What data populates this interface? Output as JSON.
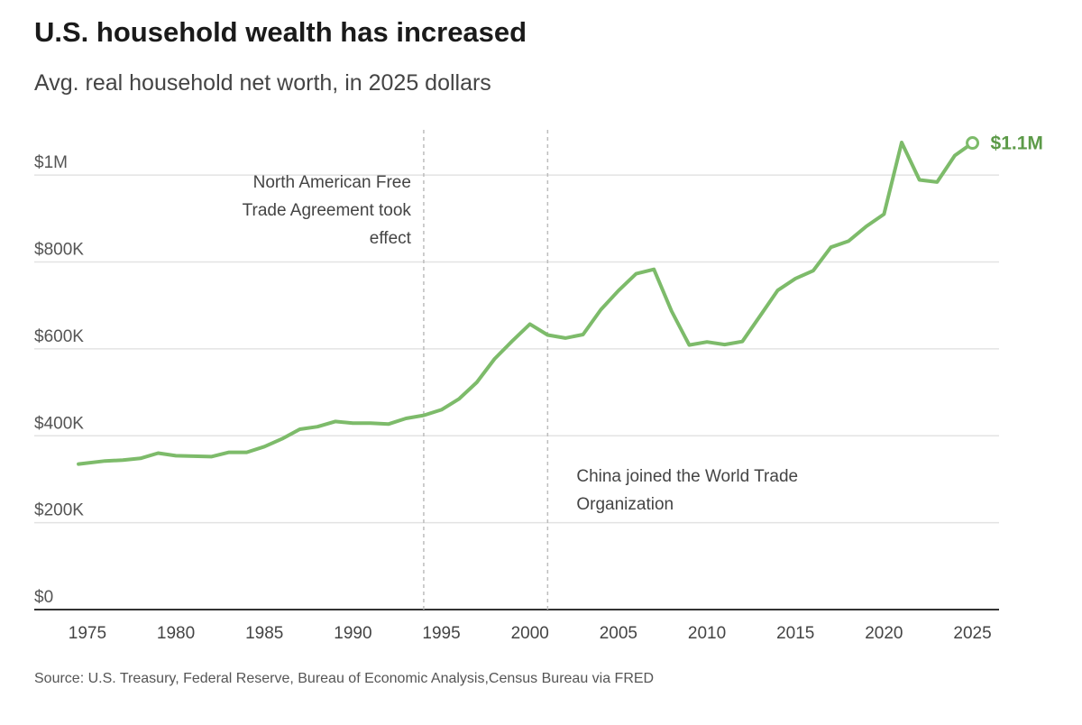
{
  "header": {
    "title": "U.S. household wealth has increased",
    "subtitle": "Avg. real household net worth, in 2025 dollars"
  },
  "footer": {
    "source": "Source: U.S. Treasury, Federal Reserve, Bureau of Economic Analysis,Census Bureau via FRED"
  },
  "colors": {
    "line": "#7dbb6a",
    "end_label": "#5c9a48",
    "grid": "#e3e3e3",
    "axis": "#333333",
    "marker_line": "#bdbdbd"
  },
  "chart_data": {
    "type": "line",
    "title": "U.S. household wealth has increased",
    "subtitle": "Avg. real household net worth, in 2025 dollars",
    "xlim": [
      1972,
      2026.5
    ],
    "ylim": [
      0,
      1100000
    ],
    "grid": true,
    "y_ticks": [
      {
        "value": 0,
        "label": "$0"
      },
      {
        "value": 200000,
        "label": "$200K"
      },
      {
        "value": 400000,
        "label": "$400K"
      },
      {
        "value": 600000,
        "label": "$600K"
      },
      {
        "value": 800000,
        "label": "$800K"
      },
      {
        "value": 1000000,
        "label": "$1M"
      }
    ],
    "x_ticks": [
      {
        "value": 1975,
        "label": "1975"
      },
      {
        "value": 1980,
        "label": "1980"
      },
      {
        "value": 1985,
        "label": "1985"
      },
      {
        "value": 1990,
        "label": "1990"
      },
      {
        "value": 1995,
        "label": "1995"
      },
      {
        "value": 2000,
        "label": "2000"
      },
      {
        "value": 2005,
        "label": "2005"
      },
      {
        "value": 2010,
        "label": "2010"
      },
      {
        "value": 2015,
        "label": "2015"
      },
      {
        "value": 2020,
        "label": "2020"
      },
      {
        "value": 2025,
        "label": "2025"
      }
    ],
    "series": [
      {
        "x": [
          1974.5,
          1976,
          1977,
          1978,
          1979,
          1980,
          1981,
          1982,
          1983,
          1984,
          1985,
          1986,
          1987,
          1988,
          1989,
          1990,
          1991,
          1992,
          1993,
          1994,
          1995,
          1996,
          1997,
          1998,
          1999,
          2000,
          2001,
          2002,
          2003,
          2004,
          2005,
          2006,
          2007,
          2008,
          2009,
          2010,
          2011,
          2012,
          2013,
          2014,
          2015,
          2016,
          2017,
          2018,
          2019,
          2020,
          2021,
          2022,
          2023,
          2024,
          2025
        ],
        "y": [
          335000,
          342000,
          344000,
          348000,
          360000,
          354000,
          353000,
          352000,
          362000,
          362000,
          375000,
          393000,
          415000,
          421000,
          433000,
          429000,
          429000,
          427000,
          440000,
          447000,
          460000,
          485000,
          523000,
          577000,
          618000,
          657000,
          632000,
          625000,
          633000,
          690000,
          734000,
          773000,
          783000,
          687000,
          609000,
          616000,
          610000,
          617000,
          676000,
          735000,
          762000,
          780000,
          834000,
          848000,
          882000,
          910000,
          1075000,
          989000,
          984000,
          1045000,
          1074000
        ]
      }
    ],
    "end_label": "$1.1M",
    "annotations": [
      {
        "x": 1994,
        "text_lines": [
          "North American Free",
          "Trade Agreement took",
          "effect"
        ],
        "side": "left"
      },
      {
        "x": 2001,
        "text_lines": [
          "China joined the World Trade",
          "Organization"
        ],
        "side": "right"
      }
    ]
  }
}
